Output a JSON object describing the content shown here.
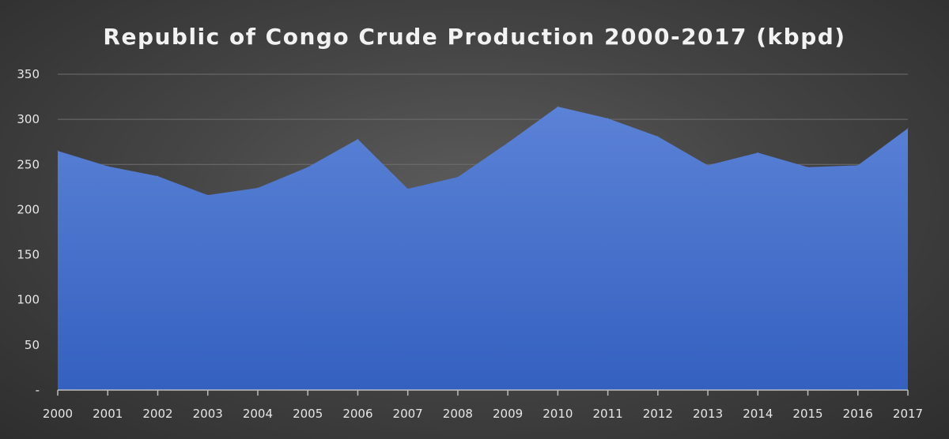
{
  "chart_data": {
    "type": "area",
    "title": "Republic of Congo Crude Production 2000-2017 (kbpd)",
    "xlabel": "",
    "ylabel": "",
    "categories": [
      "2000",
      "2001",
      "2002",
      "2003",
      "2004",
      "2005",
      "2006",
      "2007",
      "2008",
      "2009",
      "2010",
      "2011",
      "2012",
      "2013",
      "2014",
      "2015",
      "2016",
      "2017"
    ],
    "series": [
      {
        "values": [
          265,
          248,
          237,
          216,
          224,
          247,
          278,
          223,
          236,
          274,
          314,
          301,
          281,
          249,
          263,
          247,
          249,
          290
        ]
      }
    ],
    "ylim": [
      0,
      350
    ],
    "yticks": [
      0,
      50,
      100,
      150,
      200,
      250,
      300,
      350
    ],
    "ytick_labels": [
      "-",
      "50",
      "100",
      "150",
      "200",
      "250",
      "300",
      "350"
    ],
    "grid": true,
    "legend": "none",
    "colors": {
      "fill_top": "#5b82d6",
      "fill_bottom": "#3460c0",
      "background": "#404040"
    }
  }
}
